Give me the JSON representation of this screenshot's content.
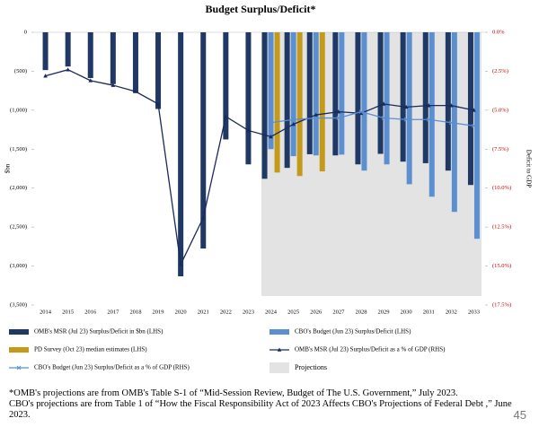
{
  "chart_data": {
    "type": "bar",
    "title": "Budget Surplus/Deficit*",
    "y_label": "$bn",
    "y2_label": "Deficit to GDP",
    "categories": [
      "2014",
      "2015",
      "2016",
      "2017",
      "2018",
      "2019",
      "2020",
      "2021",
      "2022",
      "2023",
      "2024",
      "2025",
      "2026",
      "2027",
      "2028",
      "2029",
      "2030",
      "2031",
      "2032",
      "2033"
    ],
    "series": [
      {
        "name": "OMB's MSR (Jul 23) Surplus/Deficit in $bn (LHS)",
        "type": "bar",
        "color": "#1f3864",
        "values": [
          -485,
          -439,
          -587,
          -665,
          -779,
          -984,
          -3132,
          -2775,
          -1375,
          -1695,
          -1880,
          -1740,
          -1565,
          -1580,
          -1695,
          -1560,
          -1660,
          -1680,
          -1775,
          -1960
        ]
      },
      {
        "name": "CBO's Budget (Jun 23) Surplus/Deficit (LHS)",
        "type": "bar",
        "color": "#5b8fd0",
        "values": [
          null,
          null,
          null,
          null,
          null,
          null,
          null,
          null,
          null,
          null,
          -1500,
          -1590,
          -1580,
          -1570,
          -1775,
          -1695,
          -1950,
          -2110,
          -2305,
          -2650
        ]
      },
      {
        "name": "PD Survey (Oct 23) median estimates (LHS)",
        "type": "bar",
        "color": "#c49a1a",
        "values": [
          null,
          null,
          null,
          null,
          null,
          null,
          null,
          null,
          null,
          null,
          -1800,
          -1845,
          -1785,
          null,
          null,
          null,
          null,
          null,
          null,
          null
        ]
      },
      {
        "name": "OMB's MSR (Jul 23) Surplus/Deficit as a % of GDP (RHS)",
        "type": "line",
        "axis": "y2",
        "color": "#1a2a5c",
        "marker": "triangle",
        "values": [
          -2.8,
          -2.4,
          -3.1,
          -3.4,
          -3.8,
          -4.6,
          -14.9,
          -11.9,
          -5.4,
          -6.3,
          -6.7,
          -5.9,
          -5.3,
          -5.1,
          -5.2,
          -4.6,
          -4.8,
          -4.7,
          -4.7,
          -5.0
        ]
      },
      {
        "name": "CBO's Budget (Jun 23) Surplus/Deficit as a % of GDP (RHS)",
        "type": "line",
        "axis": "y2",
        "color": "#5b8fd0",
        "marker": "x",
        "values": [
          null,
          null,
          null,
          null,
          null,
          null,
          null,
          null,
          null,
          null,
          -5.8,
          -5.6,
          -5.5,
          -5.5,
          -5.1,
          -5.5,
          -5.6,
          -5.6,
          -5.8,
          -6.0
        ]
      }
    ],
    "projections": {
      "label": "Projections",
      "start": "2024",
      "color": "#e3e3e3"
    },
    "ylim": [
      0,
      -3500
    ],
    "yticks": [
      0,
      {
        "value": -500,
        "label": "(500)"
      },
      {
        "value": -1000,
        "label": "(1,000)"
      },
      {
        "value": -1500,
        "label": "(1,500)"
      },
      {
        "value": -2000,
        "label": "(2,000)"
      },
      {
        "value": -2500,
        "label": "(2,500)"
      },
      {
        "value": -3000,
        "label": "(3,000)"
      },
      {
        "value": -3500,
        "label": "(3,500)"
      }
    ],
    "y2lim": [
      0,
      -17.5
    ],
    "y2ticks": [
      {
        "value": 0,
        "label": "0.0%"
      },
      {
        "value": -2.5,
        "label": "(2.5%)"
      },
      {
        "value": -5,
        "label": "(5.0%)"
      },
      {
        "value": -7.5,
        "label": "(7.5%)"
      },
      {
        "value": -10,
        "label": "(10.0%)"
      },
      {
        "value": -12.5,
        "label": "(12.5%)"
      },
      {
        "value": -15,
        "label": "(15.0%)"
      },
      {
        "value": -17.5,
        "label": "(17.5%)"
      }
    ]
  },
  "notes": [
    "*OMB's projections are from OMB's Table S-1 of “Mid-Session Review, Budget of The U.S. Government,” July 2023.",
    "CBO's projections are from Table 1 of “How the Fiscal Responsibility Act of 2023 Affects CBO's Projections of Federal Debt ,” June 2023."
  ],
  "page_number": "45"
}
